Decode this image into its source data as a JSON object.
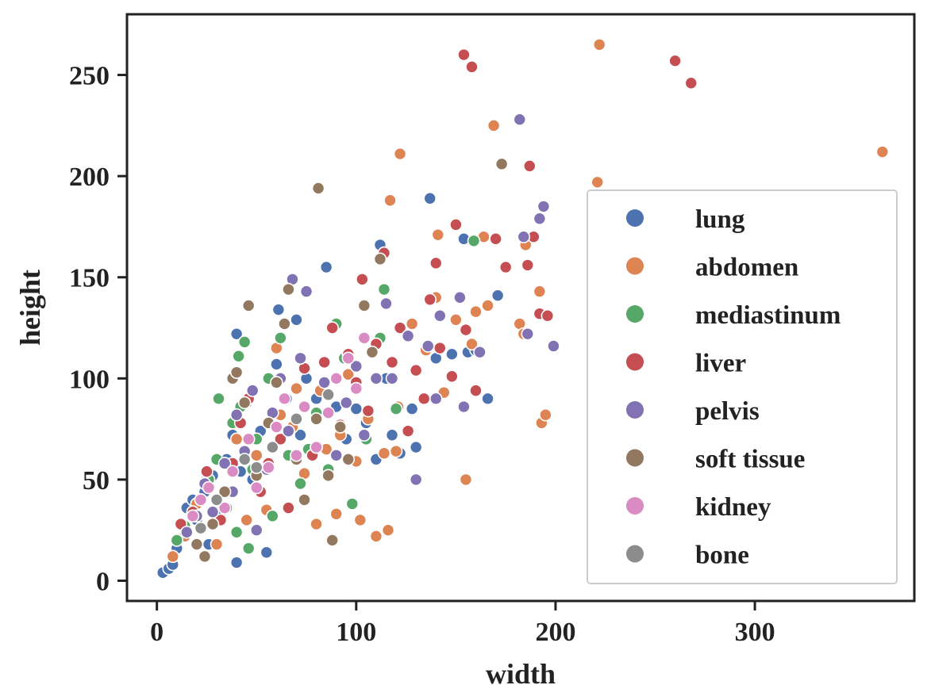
{
  "chart_data": {
    "type": "scatter",
    "title": "",
    "xlabel": "width",
    "ylabel": "height",
    "xlim": [
      -15,
      380
    ],
    "ylim": [
      -10,
      280
    ],
    "xticks": [
      0,
      100,
      200,
      300
    ],
    "yticks": [
      0,
      50,
      100,
      150,
      200,
      250
    ],
    "grid": false,
    "legend_position": "right",
    "series": [
      {
        "name": "lung",
        "color": "#4c72b0",
        "points": [
          [
            3,
            4
          ],
          [
            6,
            6
          ],
          [
            8,
            8
          ],
          [
            10,
            16
          ],
          [
            12,
            28
          ],
          [
            15,
            36
          ],
          [
            18,
            40
          ],
          [
            20,
            30
          ],
          [
            24,
            44
          ],
          [
            26,
            18
          ],
          [
            28,
            52
          ],
          [
            30,
            40
          ],
          [
            32,
            34
          ],
          [
            35,
            60
          ],
          [
            38,
            72
          ],
          [
            40,
            9
          ],
          [
            40,
            122
          ],
          [
            42,
            54
          ],
          [
            45,
            88
          ],
          [
            48,
            50
          ],
          [
            52,
            74
          ],
          [
            55,
            14
          ],
          [
            58,
            66
          ],
          [
            60,
            107
          ],
          [
            61,
            134
          ],
          [
            65,
            90
          ],
          [
            70,
            129
          ],
          [
            72,
            72
          ],
          [
            75,
            100
          ],
          [
            80,
            90
          ],
          [
            85,
            155
          ],
          [
            90,
            86
          ],
          [
            95,
            70
          ],
          [
            100,
            85
          ],
          [
            105,
            78
          ],
          [
            110,
            60
          ],
          [
            112,
            166
          ],
          [
            115,
            100
          ],
          [
            118,
            72
          ],
          [
            122,
            63
          ],
          [
            128,
            85
          ],
          [
            130,
            66
          ],
          [
            137,
            189
          ],
          [
            140,
            110
          ],
          [
            148,
            112
          ],
          [
            154,
            169
          ],
          [
            156,
            113
          ],
          [
            160,
            114
          ],
          [
            166,
            90
          ],
          [
            171,
            141
          ]
        ]
      },
      {
        "name": "abdomen",
        "color": "#dd8452",
        "points": [
          [
            8,
            12
          ],
          [
            14,
            22
          ],
          [
            20,
            38
          ],
          [
            25,
            50
          ],
          [
            30,
            18
          ],
          [
            35,
            44
          ],
          [
            40,
            70
          ],
          [
            45,
            30
          ],
          [
            50,
            62
          ],
          [
            55,
            35
          ],
          [
            60,
            115
          ],
          [
            62,
            82
          ],
          [
            68,
            76
          ],
          [
            70,
            95
          ],
          [
            74,
            53
          ],
          [
            80,
            28
          ],
          [
            82,
            94
          ],
          [
            85,
            65
          ],
          [
            90,
            33
          ],
          [
            92,
            72
          ],
          [
            96,
            102
          ],
          [
            100,
            59
          ],
          [
            102,
            30
          ],
          [
            106,
            80
          ],
          [
            110,
            22
          ],
          [
            114,
            63
          ],
          [
            116,
            25
          ],
          [
            117,
            188
          ],
          [
            120,
            64
          ],
          [
            121,
            86
          ],
          [
            122,
            211
          ],
          [
            128,
            127
          ],
          [
            135,
            114
          ],
          [
            140,
            140
          ],
          [
            141,
            171
          ],
          [
            144,
            93
          ],
          [
            150,
            129
          ],
          [
            155,
            50
          ],
          [
            158,
            117
          ],
          [
            160,
            133
          ],
          [
            164,
            170
          ],
          [
            166,
            136
          ],
          [
            169,
            225
          ],
          [
            182,
            127
          ],
          [
            184,
            122
          ],
          [
            185,
            166
          ],
          [
            192,
            143
          ],
          [
            193,
            78
          ],
          [
            195,
            82
          ],
          [
            221,
            197
          ],
          [
            222,
            265
          ],
          [
            364,
            212
          ]
        ]
      },
      {
        "name": "mediastinum",
        "color": "#55a868",
        "points": [
          [
            10,
            20
          ],
          [
            14,
            27
          ],
          [
            18,
            34
          ],
          [
            22,
            40
          ],
          [
            26,
            50
          ],
          [
            30,
            60
          ],
          [
            31,
            90
          ],
          [
            35,
            36
          ],
          [
            38,
            78
          ],
          [
            40,
            24
          ],
          [
            41,
            111
          ],
          [
            42,
            86
          ],
          [
            44,
            118
          ],
          [
            46,
            16
          ],
          [
            48,
            55
          ],
          [
            50,
            70
          ],
          [
            56,
            100
          ],
          [
            58,
            32
          ],
          [
            62,
            120
          ],
          [
            66,
            62
          ],
          [
            72,
            48
          ],
          [
            76,
            65
          ],
          [
            80,
            83
          ],
          [
            86,
            55
          ],
          [
            90,
            127
          ],
          [
            94,
            110
          ],
          [
            98,
            38
          ],
          [
            105,
            70
          ],
          [
            112,
            120
          ],
          [
            114,
            144
          ],
          [
            120,
            85
          ],
          [
            159,
            168
          ]
        ]
      },
      {
        "name": "liver",
        "color": "#c44e52",
        "points": [
          [
            12,
            28
          ],
          [
            18,
            34
          ],
          [
            25,
            54
          ],
          [
            32,
            30
          ],
          [
            38,
            58
          ],
          [
            42,
            78
          ],
          [
            46,
            90
          ],
          [
            52,
            44
          ],
          [
            56,
            58
          ],
          [
            62,
            70
          ],
          [
            66,
            36
          ],
          [
            70,
            80
          ],
          [
            74,
            105
          ],
          [
            78,
            62
          ],
          [
            84,
            108
          ],
          [
            88,
            125
          ],
          [
            92,
            77
          ],
          [
            96,
            112
          ],
          [
            100,
            98
          ],
          [
            103,
            149
          ],
          [
            106,
            84
          ],
          [
            110,
            117
          ],
          [
            114,
            162
          ],
          [
            118,
            108
          ],
          [
            122,
            125
          ],
          [
            126,
            74
          ],
          [
            130,
            104
          ],
          [
            134,
            90
          ],
          [
            137,
            139
          ],
          [
            140,
            157
          ],
          [
            142,
            115
          ],
          [
            148,
            101
          ],
          [
            150,
            176
          ],
          [
            154,
            260
          ],
          [
            155,
            124
          ],
          [
            158,
            254
          ],
          [
            160,
            94
          ],
          [
            170,
            169
          ],
          [
            175,
            155
          ],
          [
            186,
            156
          ],
          [
            187,
            205
          ],
          [
            189,
            170
          ],
          [
            192,
            132
          ],
          [
            196,
            131
          ],
          [
            260,
            257
          ],
          [
            268,
            246
          ]
        ]
      },
      {
        "name": "pelvis",
        "color": "#8172b3",
        "points": [
          [
            15,
            24
          ],
          [
            20,
            32
          ],
          [
            24,
            48
          ],
          [
            28,
            34
          ],
          [
            34,
            58
          ],
          [
            38,
            44
          ],
          [
            40,
            82
          ],
          [
            44,
            64
          ],
          [
            48,
            94
          ],
          [
            50,
            25
          ],
          [
            55,
            55
          ],
          [
            58,
            83
          ],
          [
            62,
            100
          ],
          [
            66,
            74
          ],
          [
            68,
            149
          ],
          [
            72,
            110
          ],
          [
            75,
            143
          ],
          [
            80,
            66
          ],
          [
            84,
            98
          ],
          [
            90,
            62
          ],
          [
            95,
            88
          ],
          [
            100,
            106
          ],
          [
            104,
            72
          ],
          [
            110,
            100
          ],
          [
            115,
            137
          ],
          [
            118,
            100
          ],
          [
            126,
            121
          ],
          [
            130,
            50
          ],
          [
            136,
            116
          ],
          [
            140,
            90
          ],
          [
            142,
            131
          ],
          [
            152,
            140
          ],
          [
            154,
            86
          ],
          [
            162,
            113
          ],
          [
            182,
            228
          ],
          [
            184,
            170
          ],
          [
            186,
            122
          ],
          [
            192,
            179
          ],
          [
            194,
            185
          ],
          [
            199,
            116
          ]
        ]
      },
      {
        "name": "soft tissue",
        "color": "#937860",
        "points": [
          [
            20,
            18
          ],
          [
            24,
            12
          ],
          [
            28,
            28
          ],
          [
            34,
            44
          ],
          [
            38,
            100
          ],
          [
            40,
            103
          ],
          [
            44,
            88
          ],
          [
            46,
            136
          ],
          [
            50,
            52
          ],
          [
            56,
            78
          ],
          [
            60,
            98
          ],
          [
            64,
            127
          ],
          [
            66,
            144
          ],
          [
            70,
            60
          ],
          [
            74,
            40
          ],
          [
            80,
            80
          ],
          [
            81,
            194
          ],
          [
            86,
            52
          ],
          [
            88,
            20
          ],
          [
            92,
            76
          ],
          [
            96,
            60
          ],
          [
            104,
            136
          ],
          [
            108,
            113
          ],
          [
            112,
            159
          ],
          [
            173,
            206
          ]
        ]
      },
      {
        "name": "kidney",
        "color": "#da8bc3",
        "points": [
          [
            18,
            32
          ],
          [
            22,
            40
          ],
          [
            26,
            46
          ],
          [
            34,
            36
          ],
          [
            38,
            54
          ],
          [
            46,
            70
          ],
          [
            50,
            46
          ],
          [
            56,
            56
          ],
          [
            60,
            76
          ],
          [
            64,
            90
          ],
          [
            70,
            62
          ],
          [
            74,
            86
          ],
          [
            80,
            66
          ],
          [
            86,
            83
          ],
          [
            90,
            100
          ],
          [
            96,
            110
          ],
          [
            100,
            95
          ],
          [
            104,
            120
          ]
        ]
      },
      {
        "name": "bone",
        "color": "#8c8c8c",
        "points": [
          [
            22,
            26
          ],
          [
            30,
            40
          ],
          [
            44,
            60
          ],
          [
            50,
            56
          ],
          [
            58,
            66
          ],
          [
            70,
            80
          ],
          [
            86,
            92
          ]
        ]
      }
    ]
  }
}
